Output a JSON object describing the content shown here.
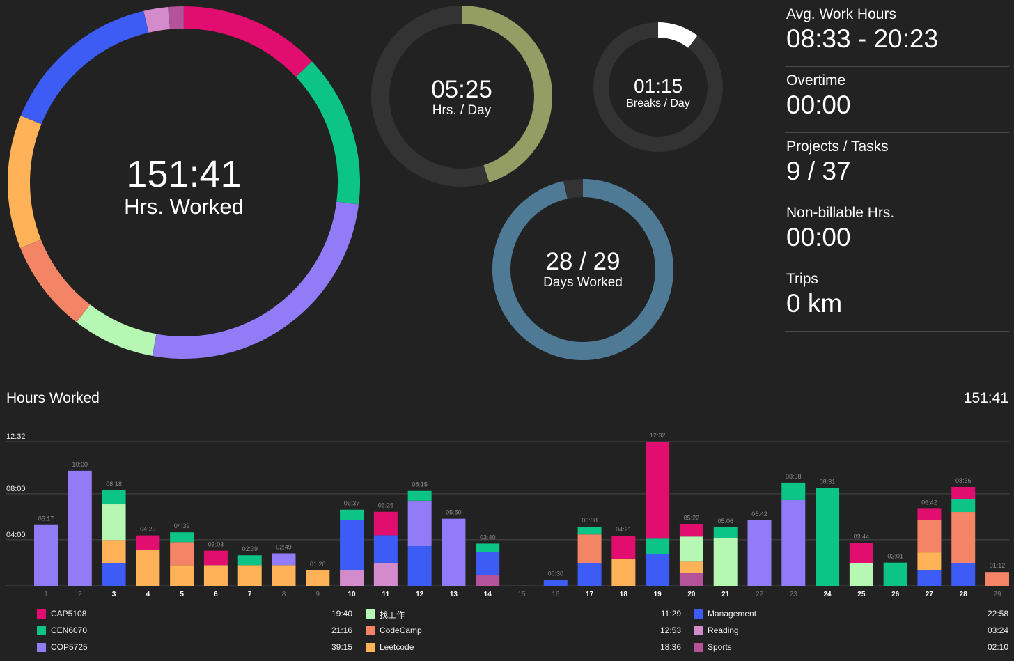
{
  "colors": {
    "background": "#222222",
    "ring_track": "#333333",
    "hours_per_day": "#949d64",
    "breaks": "#ffffff",
    "days_worked": "#4f7a96"
  },
  "projects": [
    {
      "name": "CAP5108",
      "total": "19:40",
      "minutes": 1180,
      "color": "#e20e6f"
    },
    {
      "name": "CEN6070",
      "total": "21:16",
      "minutes": 1276,
      "color": "#0cc486"
    },
    {
      "name": "COP5725",
      "total": "39:15",
      "minutes": 2355,
      "color": "#927bf7"
    },
    {
      "name": "找工作",
      "total": "11:29",
      "minutes": 689,
      "color": "#b6f7b3"
    },
    {
      "name": "CodeCamp",
      "total": "12:53",
      "minutes": 773,
      "color": "#f38466"
    },
    {
      "name": "Leetcode",
      "total": "18:36",
      "minutes": 1116,
      "color": "#ffb257"
    },
    {
      "name": "Management",
      "total": "22:58",
      "minutes": 1378,
      "color": "#3d5bf5"
    },
    {
      "name": "Reading",
      "total": "03:24",
      "minutes": 204,
      "color": "#d38bcb"
    },
    {
      "name": "Sports",
      "total": "02:10",
      "minutes": 130,
      "color": "#b5539a"
    }
  ],
  "summary": {
    "total_value": "151:41",
    "total_label": "Hrs. Worked",
    "per_day_value": "05:25",
    "per_day_label": "Hrs. / Day",
    "per_day_fraction": 0.451,
    "breaks_value": "01:15",
    "breaks_label": "Breaks / Day",
    "breaks_fraction": 0.104,
    "days_value": "28 / 29",
    "days_label": "Days Worked",
    "days_fraction": 0.9655
  },
  "stats": [
    {
      "label": "Avg. Work Hours",
      "value": "08:33 - 20:23"
    },
    {
      "label": "Overtime",
      "value": "00:00"
    },
    {
      "label": "Projects / Tasks",
      "value": "9 / 37"
    },
    {
      "label": "Non-billable Hrs.",
      "value": "00:00"
    },
    {
      "label": "Trips",
      "value": "0 km"
    }
  ],
  "chart_header": {
    "title": "Hours Worked",
    "total": "151:41"
  },
  "chart_data": {
    "type": "bar",
    "stacked": true,
    "title": "Hours Worked",
    "ylim_minutes": [
      0,
      752
    ],
    "y_ticks": [
      {
        "label": "04:00",
        "minutes": 240
      },
      {
        "label": "08:00",
        "minutes": 480
      },
      {
        "label": "12:32",
        "minutes": 752
      }
    ],
    "grid": true,
    "days": [
      {
        "day": "1",
        "total": "05:17",
        "weekend": true,
        "segments": [
          [
            "COP5725",
            317
          ]
        ]
      },
      {
        "day": "2",
        "total": "10:00",
        "weekend": true,
        "segments": [
          [
            "COP5725",
            600
          ]
        ]
      },
      {
        "day": "3",
        "total": "08:18",
        "weekend": false,
        "segments": [
          [
            "Management",
            119
          ],
          [
            "Leetcode",
            120
          ],
          [
            "找工作",
            186
          ],
          [
            "CEN6070",
            73
          ]
        ]
      },
      {
        "day": "4",
        "total": "04:23",
        "weekend": false,
        "segments": [
          [
            "Leetcode",
            188
          ],
          [
            "CAP5108",
            75
          ]
        ]
      },
      {
        "day": "5",
        "total": "04:39",
        "weekend": false,
        "segments": [
          [
            "Leetcode",
            108
          ],
          [
            "CodeCamp",
            120
          ],
          [
            "CEN6070",
            51
          ]
        ]
      },
      {
        "day": "6",
        "total": "03:03",
        "weekend": false,
        "segments": [
          [
            "Leetcode",
            108
          ],
          [
            "CAP5108",
            75
          ]
        ]
      },
      {
        "day": "7",
        "total": "02:39",
        "weekend": false,
        "segments": [
          [
            "Leetcode",
            108
          ],
          [
            "CEN6070",
            51
          ]
        ]
      },
      {
        "day": "8",
        "total": "02:49",
        "weekend": true,
        "segments": [
          [
            "Leetcode",
            108
          ],
          [
            "COP5725",
            61
          ]
        ]
      },
      {
        "day": "9",
        "total": "01:20",
        "weekend": true,
        "segments": [
          [
            "Leetcode",
            80
          ]
        ]
      },
      {
        "day": "10",
        "total": "06:37",
        "weekend": false,
        "segments": [
          [
            "Reading",
            83
          ],
          [
            "Management",
            262
          ],
          [
            "CEN6070",
            52
          ]
        ]
      },
      {
        "day": "11",
        "total": "06:26",
        "weekend": false,
        "segments": [
          [
            "Reading",
            119
          ],
          [
            "Management",
            145
          ],
          [
            "CAP5108",
            122
          ]
        ]
      },
      {
        "day": "12",
        "total": "08:15",
        "weekend": false,
        "segments": [
          [
            "Management",
            207
          ],
          [
            "COP5725",
            237
          ],
          [
            "CEN6070",
            51
          ]
        ]
      },
      {
        "day": "13",
        "total": "05:50",
        "weekend": false,
        "segments": [
          [
            "COP5725",
            350
          ]
        ]
      },
      {
        "day": "14",
        "total": "03:40",
        "weekend": false,
        "segments": [
          [
            "Sports",
            57
          ],
          [
            "Management",
            120
          ],
          [
            "CEN6070",
            43
          ]
        ]
      },
      {
        "day": "15",
        "total": "",
        "weekend": true,
        "segments": []
      },
      {
        "day": "16",
        "total": "00:30",
        "weekend": true,
        "segments": [
          [
            "Management",
            30
          ]
        ]
      },
      {
        "day": "17",
        "total": "05:08",
        "weekend": false,
        "segments": [
          [
            "Management",
            119
          ],
          [
            "CodeCamp",
            149
          ],
          [
            "CEN6070",
            40
          ]
        ]
      },
      {
        "day": "18",
        "total": "04:21",
        "weekend": false,
        "segments": [
          [
            "Leetcode",
            141
          ],
          [
            "CAP5108",
            120
          ]
        ]
      },
      {
        "day": "19",
        "total": "12:32",
        "weekend": false,
        "segments": [
          [
            "Management",
            166
          ],
          [
            "CEN6070",
            80
          ],
          [
            "CAP5108",
            506
          ]
        ]
      },
      {
        "day": "20",
        "total": "05:22",
        "weekend": false,
        "segments": [
          [
            "Sports",
            68
          ],
          [
            "Leetcode",
            58
          ],
          [
            "找工作",
            131
          ],
          [
            "CAP5108",
            65
          ]
        ]
      },
      {
        "day": "21",
        "total": "05:06",
        "weekend": false,
        "segments": [
          [
            "找工作",
            250
          ],
          [
            "CEN6070",
            56
          ]
        ]
      },
      {
        "day": "22",
        "total": "05:42",
        "weekend": true,
        "segments": [
          [
            "COP5725",
            342
          ]
        ]
      },
      {
        "day": "23",
        "total": "08:58",
        "weekend": true,
        "segments": [
          [
            "COP5725",
            447
          ],
          [
            "CEN6070",
            91
          ]
        ]
      },
      {
        "day": "24",
        "total": "08:31",
        "weekend": false,
        "segments": [
          [
            "CEN6070",
            511
          ]
        ]
      },
      {
        "day": "25",
        "total": "03:44",
        "weekend": false,
        "segments": [
          [
            "找工作",
            119
          ],
          [
            "CAP5108",
            105
          ]
        ]
      },
      {
        "day": "26",
        "total": "02:01",
        "weekend": false,
        "segments": [
          [
            "CEN6070",
            121
          ]
        ]
      },
      {
        "day": "27",
        "total": "06:42",
        "weekend": false,
        "segments": [
          [
            "Management",
            83
          ],
          [
            "Leetcode",
            91
          ],
          [
            "CodeCamp",
            168
          ],
          [
            "CAP5108",
            60
          ]
        ]
      },
      {
        "day": "28",
        "total": "08:36",
        "weekend": false,
        "segments": [
          [
            "Management",
            119
          ],
          [
            "CodeCamp",
            266
          ],
          [
            "CEN6070",
            69
          ],
          [
            "CAP5108",
            62
          ]
        ]
      },
      {
        "day": "29",
        "total": "01:12",
        "weekend": true,
        "segments": [
          [
            "CodeCamp",
            72
          ]
        ]
      }
    ]
  }
}
